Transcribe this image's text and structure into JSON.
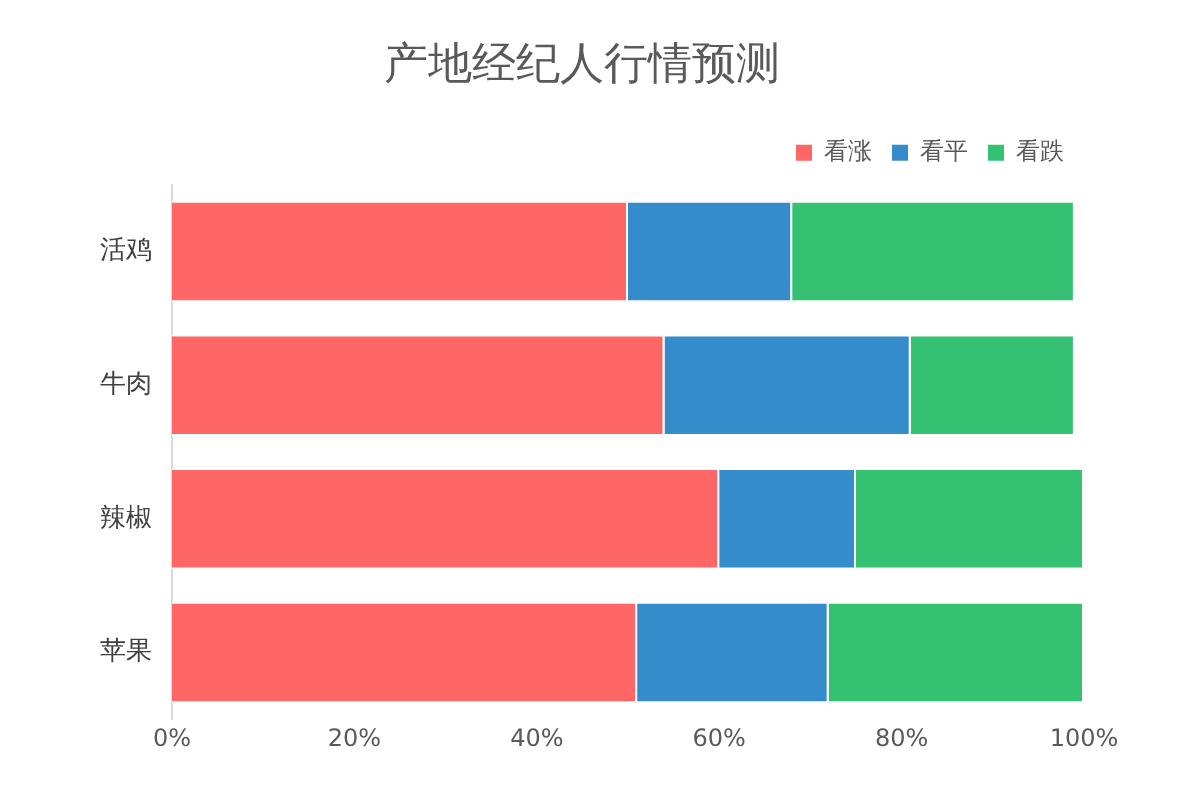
{
  "chart_data": {
    "type": "bar",
    "orientation": "horizontal",
    "stacked": true,
    "title": "产地经纪人行情预测",
    "categories": [
      "活鸡",
      "牛肉",
      "辣椒",
      "苹果"
    ],
    "series": [
      {
        "name": "看涨",
        "color": "#ff6666",
        "values": [
          50,
          54,
          60,
          51
        ]
      },
      {
        "name": "看平",
        "color": "#358ccb",
        "values": [
          18,
          27,
          15,
          21
        ]
      },
      {
        "name": "看跌",
        "color": "#35c172",
        "values": [
          31,
          18,
          25,
          28
        ]
      }
    ],
    "xlim": [
      0,
      100
    ],
    "xticks": [
      {
        "value": 0,
        "label": "0%"
      },
      {
        "value": 20,
        "label": "20%"
      },
      {
        "value": 40,
        "label": "40%"
      },
      {
        "value": 60,
        "label": "60%"
      },
      {
        "value": 80,
        "label": "80%"
      },
      {
        "value": 100,
        "label": "100%"
      }
    ],
    "grid": false,
    "legend": "top right"
  }
}
